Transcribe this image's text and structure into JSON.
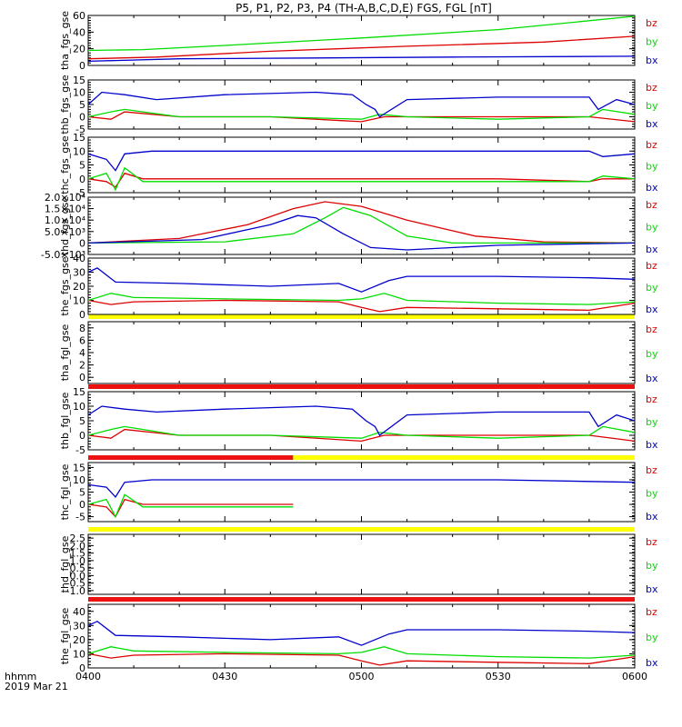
{
  "title": "P5, P1, P2, P3, P4 (TH-A,B,C,D,E) FGS, FGL [nT]",
  "footer": {
    "time_unit": "hhmm",
    "date": "2019 Mar 21"
  },
  "colors": {
    "bz": "#dd0000",
    "by": "#00dd00",
    "bx": "#0000cc",
    "bar_yellow": "#ffff00",
    "bar_red": "#ee1111",
    "axis": "#000000"
  },
  "chart_data": {
    "type": "line",
    "x_ticks": [
      "0400",
      "0430",
      "0500",
      "0530",
      "0600"
    ],
    "x_range_minutes": [
      0,
      120
    ],
    "legend": [
      "bz",
      "by",
      "bx"
    ],
    "panels": [
      {
        "ylabel": "tha_fgs_gse",
        "ylim": [
          0,
          60
        ],
        "yticks": [
          "0",
          "20",
          "40",
          "60"
        ],
        "series": [
          {
            "name": "bz",
            "x": [
              0,
              15,
              40,
              70,
              100,
              120
            ],
            "y": [
              8,
              10,
              17,
              23,
              28,
              35
            ]
          },
          {
            "name": "by",
            "x": [
              0,
              12,
              30,
              60,
              90,
              120
            ],
            "y": [
              18,
              19,
              24,
              33,
              43,
              59
            ]
          },
          {
            "name": "bx",
            "x": [
              0,
              20,
              50,
              80,
              120
            ],
            "y": [
              5,
              8,
              9,
              10,
              11
            ]
          }
        ]
      },
      {
        "ylabel": "thb_fgs_gse",
        "ylim": [
          -5,
          15
        ],
        "yticks": [
          "-5",
          "0",
          "5",
          "10",
          "15"
        ],
        "series": [
          {
            "name": "bz",
            "x": [
              0,
              5,
              8,
              20,
              40,
              60,
              65,
              70,
              90,
              110,
              120
            ],
            "y": [
              0,
              -1,
              2,
              0,
              0,
              -2,
              0,
              0,
              0,
              0,
              -2
            ]
          },
          {
            "name": "by",
            "x": [
              0,
              5,
              8,
              20,
              40,
              60,
              64,
              70,
              90,
              110,
              113,
              120
            ],
            "y": [
              0,
              2,
              3,
              0,
              0,
              -1,
              1,
              0,
              -1,
              0,
              3,
              1
            ]
          },
          {
            "name": "bx",
            "x": [
              0,
              3,
              8,
              15,
              30,
              50,
              58,
              61,
              63,
              64,
              70,
              90,
              110,
              112,
              116,
              120
            ],
            "y": [
              5,
              10,
              9,
              7,
              9,
              10,
              9,
              5,
              3,
              0,
              7,
              8,
              8,
              3,
              7,
              5
            ]
          }
        ]
      },
      {
        "ylabel": "thc_fgs_gse",
        "ylim": [
          -5,
          15
        ],
        "yticks": [
          "-5",
          "0",
          "5",
          "10",
          "15"
        ],
        "series": [
          {
            "name": "bz",
            "x": [
              0,
              4,
              6,
              8,
              12,
              30,
              60,
              90,
              110,
              113,
              120
            ],
            "y": [
              0,
              -1,
              -3,
              2,
              0,
              0,
              0,
              0,
              -1,
              0,
              0
            ]
          },
          {
            "name": "by",
            "x": [
              0,
              4,
              6,
              8,
              12,
              30,
              60,
              90,
              110,
              113,
              120
            ],
            "y": [
              0,
              2,
              -4,
              4,
              -1,
              -1,
              -1,
              -1,
              -1,
              1,
              0
            ]
          },
          {
            "name": "bx",
            "x": [
              0,
              4,
              6,
              8,
              14,
              30,
              60,
              90,
              110,
              113,
              120
            ],
            "y": [
              9,
              7,
              3,
              9,
              10,
              10,
              10,
              10,
              10,
              8,
              9
            ]
          }
        ]
      },
      {
        "ylabel": "thd_fgs_gse",
        "ylim": [
          -5000,
          20000
        ],
        "yticks": [
          "-5.0×10³",
          "0",
          "5.0×10³",
          "1.0×10⁴",
          "1.5×10⁴",
          "2.0×10⁴"
        ],
        "series": [
          {
            "name": "bz",
            "x": [
              0,
              20,
              35,
              45,
              52,
              60,
              70,
              85,
              100,
              120
            ],
            "y": [
              0,
              2000,
              8000,
              15000,
              18000,
              16000,
              10000,
              3000,
              500,
              0
            ]
          },
          {
            "name": "by",
            "x": [
              0,
              30,
              45,
              52,
              56,
              62,
              70,
              80,
              100,
              120
            ],
            "y": [
              0,
              500,
              4000,
              11000,
              15500,
              12000,
              3000,
              0,
              0,
              0
            ]
          },
          {
            "name": "bx",
            "x": [
              0,
              25,
              40,
              46,
              50,
              56,
              62,
              70,
              90,
              120
            ],
            "y": [
              0,
              1500,
              8000,
              12000,
              11000,
              4000,
              -2000,
              -3000,
              -1000,
              0
            ]
          }
        ]
      },
      {
        "ylabel": "the_fgs_gse",
        "ylim": [
          0,
          40
        ],
        "yticks": [
          "0",
          "10",
          "20",
          "30",
          "40"
        ],
        "series": [
          {
            "name": "bz",
            "x": [
              0,
              5,
              10,
              30,
              55,
              60,
              64,
              70,
              90,
              110,
              120
            ],
            "y": [
              10,
              7,
              9,
              10,
              9,
              5,
              2,
              5,
              4,
              3,
              8
            ]
          },
          {
            "name": "by",
            "x": [
              0,
              5,
              10,
              30,
              55,
              60,
              65,
              70,
              90,
              110,
              120
            ],
            "y": [
              10,
              15,
              12,
              11,
              10,
              11,
              15,
              10,
              8,
              7,
              9
            ]
          },
          {
            "name": "bx",
            "x": [
              0,
              2,
              6,
              20,
              40,
              55,
              60,
              66,
              70,
              90,
              110,
              120
            ],
            "y": [
              30,
              33,
              23,
              22,
              20,
              22,
              16,
              24,
              27,
              27,
              26,
              25
            ]
          }
        ]
      },
      {
        "ylabel": "tha_fgl_gse",
        "ylim": [
          -1,
          9
        ],
        "yticks": [
          "0",
          "2",
          "4",
          "6",
          "8"
        ],
        "series": []
      },
      {
        "ylabel": "thb_fgl_gse",
        "ylim": [
          -5,
          15
        ],
        "yticks": [
          "-5",
          "0",
          "5",
          "10",
          "15"
        ],
        "series": [
          {
            "name": "bz",
            "x": [
              0,
              5,
              8,
              20,
              40,
              60,
              65,
              70,
              90,
              110,
              120
            ],
            "y": [
              0,
              -1,
              2,
              0,
              0,
              -2,
              0,
              0,
              0,
              0,
              -2
            ]
          },
          {
            "name": "by",
            "x": [
              0,
              5,
              8,
              20,
              40,
              60,
              64,
              70,
              90,
              110,
              113,
              120
            ],
            "y": [
              0,
              2,
              3,
              0,
              0,
              -1,
              1,
              0,
              -1,
              0,
              3,
              1
            ]
          },
          {
            "name": "bx",
            "x": [
              0,
              3,
              8,
              15,
              30,
              50,
              58,
              61,
              63,
              64,
              70,
              90,
              110,
              112,
              116,
              120
            ],
            "y": [
              7,
              10,
              9,
              8,
              9,
              10,
              9,
              5,
              3,
              0,
              7,
              8,
              8,
              3,
              7,
              5
            ]
          }
        ]
      },
      {
        "ylabel": "thc_fgl_gse",
        "ylim": [
          -7,
          17
        ],
        "yticks": [
          "-5",
          "0",
          "5",
          "10",
          "15"
        ],
        "series": [
          {
            "name": "bz",
            "x": [
              0,
              4,
              6,
              8,
              12,
              30,
              45
            ],
            "y": [
              0,
              -1,
              -5,
              2,
              0,
              0,
              0
            ]
          },
          {
            "name": "by",
            "x": [
              0,
              4,
              6,
              8,
              12,
              30,
              45
            ],
            "y": [
              0,
              2,
              -5,
              4,
              -1,
              -1,
              -1
            ]
          },
          {
            "name": "bx",
            "x": [
              0,
              4,
              6,
              8,
              14,
              30,
              60,
              90,
              120
            ],
            "y": [
              8,
              7,
              3,
              9,
              10,
              10,
              10,
              10,
              9
            ]
          }
        ]
      },
      {
        "ylabel": "thd_fgl_gse",
        "ylim": [
          -1.25,
          2.75
        ],
        "yticks": [
          "-1.0",
          "-0.5",
          "0.0",
          "0.5",
          "1.0",
          "1.5",
          "2.0",
          "2.5"
        ],
        "series": []
      },
      {
        "ylabel": "the_fgl_gse",
        "ylim": [
          0,
          45
        ],
        "yticks": [
          "0",
          "10",
          "20",
          "30",
          "40"
        ],
        "series": [
          {
            "name": "bz",
            "x": [
              0,
              5,
              10,
              30,
              55,
              60,
              64,
              70,
              90,
              110,
              120
            ],
            "y": [
              10,
              7,
              9,
              10,
              9,
              5,
              2,
              5,
              4,
              3,
              8
            ]
          },
          {
            "name": "by",
            "x": [
              0,
              5,
              10,
              30,
              55,
              60,
              65,
              70,
              90,
              110,
              120
            ],
            "y": [
              10,
              15,
              12,
              11,
              10,
              11,
              15,
              10,
              8,
              7,
              9
            ]
          },
          {
            "name": "bx",
            "x": [
              0,
              2,
              6,
              20,
              40,
              55,
              60,
              66,
              70,
              90,
              110,
              120
            ],
            "y": [
              30,
              33,
              23,
              22,
              20,
              22,
              16,
              24,
              27,
              27,
              26,
              25
            ]
          }
        ]
      }
    ]
  }
}
